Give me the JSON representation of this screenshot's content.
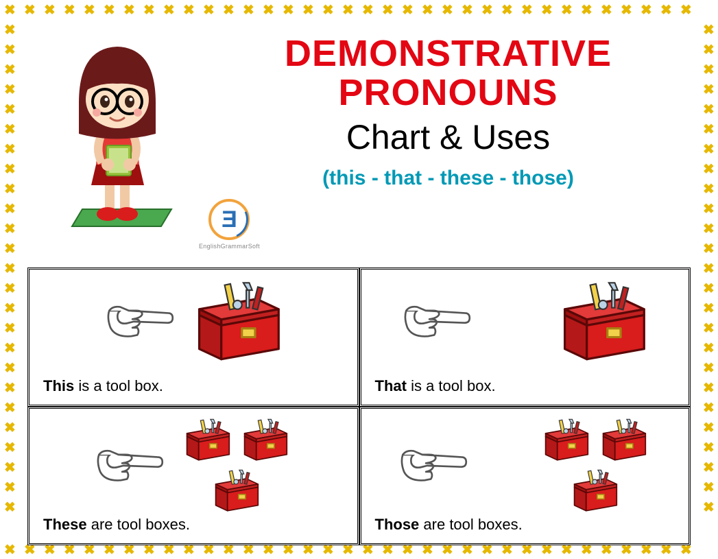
{
  "colors": {
    "title_red": "#e30613",
    "subtitle_teal": "#0099b5",
    "border_yellow": "#e6b800",
    "toolbox_red": "#d91c1c",
    "toolbox_dark": "#9e0f0f",
    "hand_outline": "#555555",
    "girl_hair": "#6b1a1a",
    "girl_shirt": "#e63935",
    "girl_book": "#97c23c",
    "girl_mat": "#4aa84e",
    "logo_orange": "#f2a33c",
    "logo_blue": "#2a6fb5"
  },
  "header": {
    "title_line1": "DEMONSTRATIVE",
    "title_line2": "PRONOUNS",
    "subtitle1": "Chart & Uses",
    "subtitle2": "(this - that - these - those)",
    "logo_text": "EnglishGrammarSoft"
  },
  "cells": [
    {
      "bold": "This",
      "rest": " is a tool box.",
      "layout": "near-single"
    },
    {
      "bold": "That",
      "rest": " is a tool box.",
      "layout": "far-single"
    },
    {
      "bold": "These",
      "rest": " are tool boxes.",
      "layout": "near-multi"
    },
    {
      "bold": "Those",
      "rest": " are tool boxes.",
      "layout": "far-multi"
    }
  ],
  "border": {
    "glyph": "✖",
    "count_h": 35,
    "count_v": 27,
    "inset": 14,
    "spacing_h": 29,
    "spacing_v": 29
  }
}
